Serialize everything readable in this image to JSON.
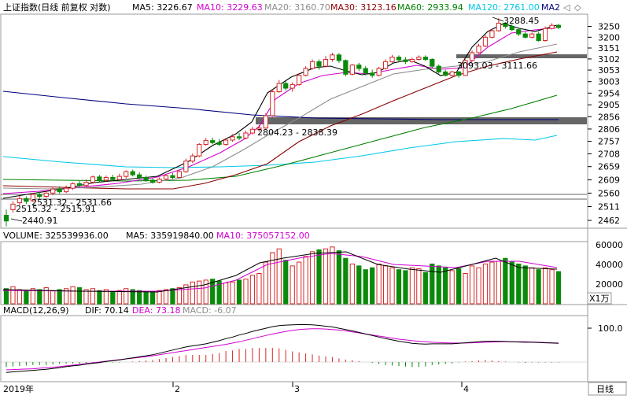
{
  "colors": {
    "up": "#d62728",
    "down": "#0a8a0a",
    "ma5": "#000000",
    "ma10": "#d200d2",
    "ma20": "#8c8c8c",
    "ma30": "#8b0000",
    "ma60": "#008000",
    "ma120": "#00c8e6",
    "ma250": "#00007f",
    "dif": "#000000",
    "dea": "#d200d2"
  },
  "header": {
    "title": "上证指数(日线 前复权 对数)",
    "ma5": "MA5: 3226.67",
    "ma10": "MA10: 3229.63",
    "ma20": "MA20: 3160.70",
    "ma30": "MA30: 3123.16",
    "ma60": "MA60: 2933.94",
    "ma120": "MA120: 2761.00",
    "ma_more": "MA2",
    "arrow_left": "◁",
    "arrow_right": "◇"
  },
  "volume_header": {
    "volume": "VOLUME: 325539936.00",
    "ma5": "MA5: 335919840.00",
    "ma10": "MA10: 375057152.00"
  },
  "macd_header": {
    "name": "MACD(12,26,9)",
    "dif": "DIF: 70.14",
    "dea": "DEA: 73.18",
    "macd": "MACD: -6.07"
  },
  "price_axis": {
    "ticks": [
      "3250",
      "3200",
      "3151",
      "3102",
      "3053",
      "3003",
      "2954",
      "2905",
      "2856",
      "2806",
      "2757",
      "2708",
      "2659",
      "2609",
      "2560",
      "2511",
      "2462"
    ]
  },
  "volume_axis": {
    "ticks": [
      "60000",
      "40000",
      "20000"
    ],
    "unit": "X1万"
  },
  "macd_axis": {
    "ticks": [
      "100.0"
    ]
  },
  "time_axis": {
    "labels": [
      "2019年",
      "2",
      "3",
      "4"
    ],
    "period": "日线"
  },
  "annotations": {
    "high": "3288.45",
    "low": "2440.91",
    "low_range": "2515.32 - 2515.91",
    "low_range2": "2531.32 - 2531.66",
    "zone_upper": "3093.03 - 3111.66",
    "zone_lower": "2804.23 - 2838.39"
  },
  "chart_data": {
    "type": "candlestick",
    "y_scale": "log",
    "price_range": [
      2440,
      3300
    ],
    "candles": [
      [
        2480,
        2460,
        2500,
        2441
      ],
      [
        2500,
        2520,
        2530,
        2490
      ],
      [
        2525,
        2540,
        2550,
        2515
      ],
      [
        2540,
        2530,
        2548,
        2520
      ],
      [
        2532,
        2555,
        2560,
        2528
      ],
      [
        2555,
        2548,
        2565,
        2540
      ],
      [
        2548,
        2560,
        2570,
        2542
      ],
      [
        2560,
        2575,
        2580,
        2552
      ],
      [
        2575,
        2565,
        2585,
        2558
      ],
      [
        2565,
        2578,
        2588,
        2560
      ],
      [
        2578,
        2595,
        2600,
        2572
      ],
      [
        2595,
        2588,
        2605,
        2580
      ],
      [
        2588,
        2600,
        2610,
        2582
      ],
      [
        2600,
        2620,
        2625,
        2595
      ],
      [
        2620,
        2608,
        2628,
        2600
      ],
      [
        2608,
        2618,
        2625,
        2602
      ],
      [
        2618,
        2610,
        2628,
        2605
      ],
      [
        2610,
        2622,
        2632,
        2606
      ],
      [
        2622,
        2640,
        2645,
        2615
      ],
      [
        2640,
        2628,
        2648,
        2622
      ],
      [
        2628,
        2618,
        2638,
        2612
      ],
      [
        2618,
        2608,
        2625,
        2602
      ],
      [
        2608,
        2600,
        2615,
        2595
      ],
      [
        2600,
        2612,
        2618,
        2596
      ],
      [
        2612,
        2625,
        2632,
        2608
      ],
      [
        2625,
        2618,
        2635,
        2612
      ],
      [
        2618,
        2640,
        2648,
        2615
      ],
      [
        2640,
        2680,
        2690,
        2635
      ],
      [
        2680,
        2700,
        2710,
        2672
      ],
      [
        2700,
        2745,
        2750,
        2695
      ],
      [
        2745,
        2760,
        2770,
        2740
      ],
      [
        2760,
        2752,
        2772,
        2745
      ],
      [
        2752,
        2745,
        2765,
        2738
      ],
      [
        2745,
        2762,
        2770,
        2740
      ],
      [
        2762,
        2775,
        2785,
        2755
      ],
      [
        2775,
        2770,
        2790,
        2762
      ],
      [
        2770,
        2790,
        2800,
        2765
      ],
      [
        2790,
        2805,
        2815,
        2785
      ],
      [
        2805,
        2810,
        2822,
        2795
      ],
      [
        2810,
        2860,
        2870,
        2805
      ],
      [
        2860,
        2960,
        2970,
        2855
      ],
      [
        2960,
        2995,
        3010,
        2955
      ],
      [
        2995,
        2975,
        3005,
        2965
      ],
      [
        2975,
        2990,
        3000,
        2960
      ],
      [
        2990,
        3030,
        3040,
        2985
      ],
      [
        3030,
        3060,
        3070,
        3025
      ],
      [
        3060,
        3090,
        3100,
        3055
      ],
      [
        3090,
        3070,
        3100,
        3055
      ],
      [
        3070,
        3100,
        3115,
        3065
      ],
      [
        3100,
        3120,
        3130,
        3090
      ],
      [
        3120,
        3095,
        3128,
        3085
      ],
      [
        3095,
        3035,
        3100,
        3025
      ],
      [
        3035,
        3075,
        3080,
        3030
      ],
      [
        3075,
        3060,
        3085,
        3048
      ],
      [
        3060,
        3040,
        3070,
        3030
      ],
      [
        3040,
        3030,
        3055,
        3020
      ],
      [
        3030,
        3060,
        3068,
        3025
      ],
      [
        3060,
        3090,
        3100,
        3055
      ],
      [
        3090,
        3110,
        3120,
        3085
      ],
      [
        3110,
        3098,
        3118,
        3088
      ],
      [
        3098,
        3090,
        3110,
        3080
      ],
      [
        3090,
        3100,
        3108,
        3085
      ],
      [
        3100,
        3110,
        3118,
        3095
      ],
      [
        3110,
        3100,
        3118,
        3092
      ],
      [
        3100,
        3070,
        3105,
        3060
      ],
      [
        3070,
        3045,
        3078,
        3038
      ],
      [
        3045,
        3030,
        3055,
        3025
      ],
      [
        3030,
        3045,
        3050,
        3025
      ],
      [
        3045,
        3030,
        3050,
        3020
      ],
      [
        3030,
        3095,
        3100,
        3028
      ],
      [
        3095,
        3130,
        3140,
        3090
      ],
      [
        3130,
        3160,
        3170,
        3125
      ],
      [
        3160,
        3200,
        3210,
        3155
      ],
      [
        3200,
        3230,
        3240,
        3195
      ],
      [
        3230,
        3265,
        3288,
        3225
      ],
      [
        3265,
        3250,
        3270,
        3240
      ],
      [
        3250,
        3235,
        3260,
        3228
      ],
      [
        3235,
        3215,
        3240,
        3205
      ],
      [
        3215,
        3200,
        3225,
        3195
      ],
      [
        3200,
        3215,
        3222,
        3195
      ],
      [
        3215,
        3185,
        3225,
        3180
      ],
      [
        3185,
        3240,
        3250,
        3180
      ],
      [
        3240,
        3255,
        3265,
        3235
      ],
      [
        3255,
        3245,
        3262,
        3238
      ]
    ],
    "volume": [
      16,
      18,
      15,
      14,
      16,
      15,
      17,
      14,
      15,
      16,
      18,
      17,
      15,
      16,
      14,
      15,
      13,
      14,
      16,
      15,
      14,
      13,
      12,
      14,
      15,
      16,
      17,
      20,
      23,
      24,
      25,
      26,
      24,
      22,
      23,
      25,
      26,
      30,
      32,
      44,
      54,
      58,
      46,
      40,
      44,
      50,
      55,
      57,
      58,
      60,
      56,
      48,
      42,
      40,
      36,
      38,
      42,
      40,
      38,
      36,
      35,
      38,
      37,
      33,
      42,
      40,
      38,
      35,
      37,
      32,
      40,
      38,
      42,
      44,
      45,
      48,
      44,
      42,
      40,
      38,
      36,
      38,
      36,
      34
    ],
    "macd": [
      -40,
      -38,
      -36,
      -34,
      -32,
      -30,
      -28,
      -25,
      -22,
      -18,
      -15,
      -12,
      -8,
      -5,
      -2,
      2,
      5,
      8,
      12,
      16,
      20,
      24,
      28,
      34,
      40,
      46,
      52,
      58,
      62,
      66,
      70,
      76,
      82,
      90,
      96,
      104,
      110,
      118,
      124,
      130,
      136,
      140,
      142,
      143,
      144,
      144,
      143,
      141,
      138,
      135,
      130,
      125,
      120,
      114,
      108,
      102,
      96,
      90,
      85,
      80,
      76,
      72,
      70,
      69,
      70,
      70,
      70,
      70,
      72,
      74,
      76,
      78,
      80,
      80,
      80,
      79,
      78,
      77,
      76,
      76,
      75,
      74,
      73,
      72
    ],
    "macd_signal": [
      -30,
      -29,
      -28,
      -27,
      -26,
      -24,
      -22,
      -20,
      -18,
      -15,
      -12,
      -9,
      -6,
      -3,
      0,
      3,
      6,
      9,
      12,
      15,
      18,
      21,
      24,
      28,
      32,
      36,
      40,
      44,
      48,
      52,
      56,
      60,
      64,
      68,
      73,
      78,
      84,
      90,
      96,
      102,
      108,
      113,
      118,
      122,
      125,
      127,
      128,
      128,
      127,
      125,
      123,
      120,
      116,
      112,
      108,
      104,
      100,
      96,
      92,
      88,
      85,
      82,
      80,
      78,
      76,
      75,
      74,
      73,
      73,
      73,
      74,
      75,
      76,
      77,
      78,
      78,
      78,
      78,
      78,
      77,
      76,
      75,
      74,
      73
    ]
  }
}
